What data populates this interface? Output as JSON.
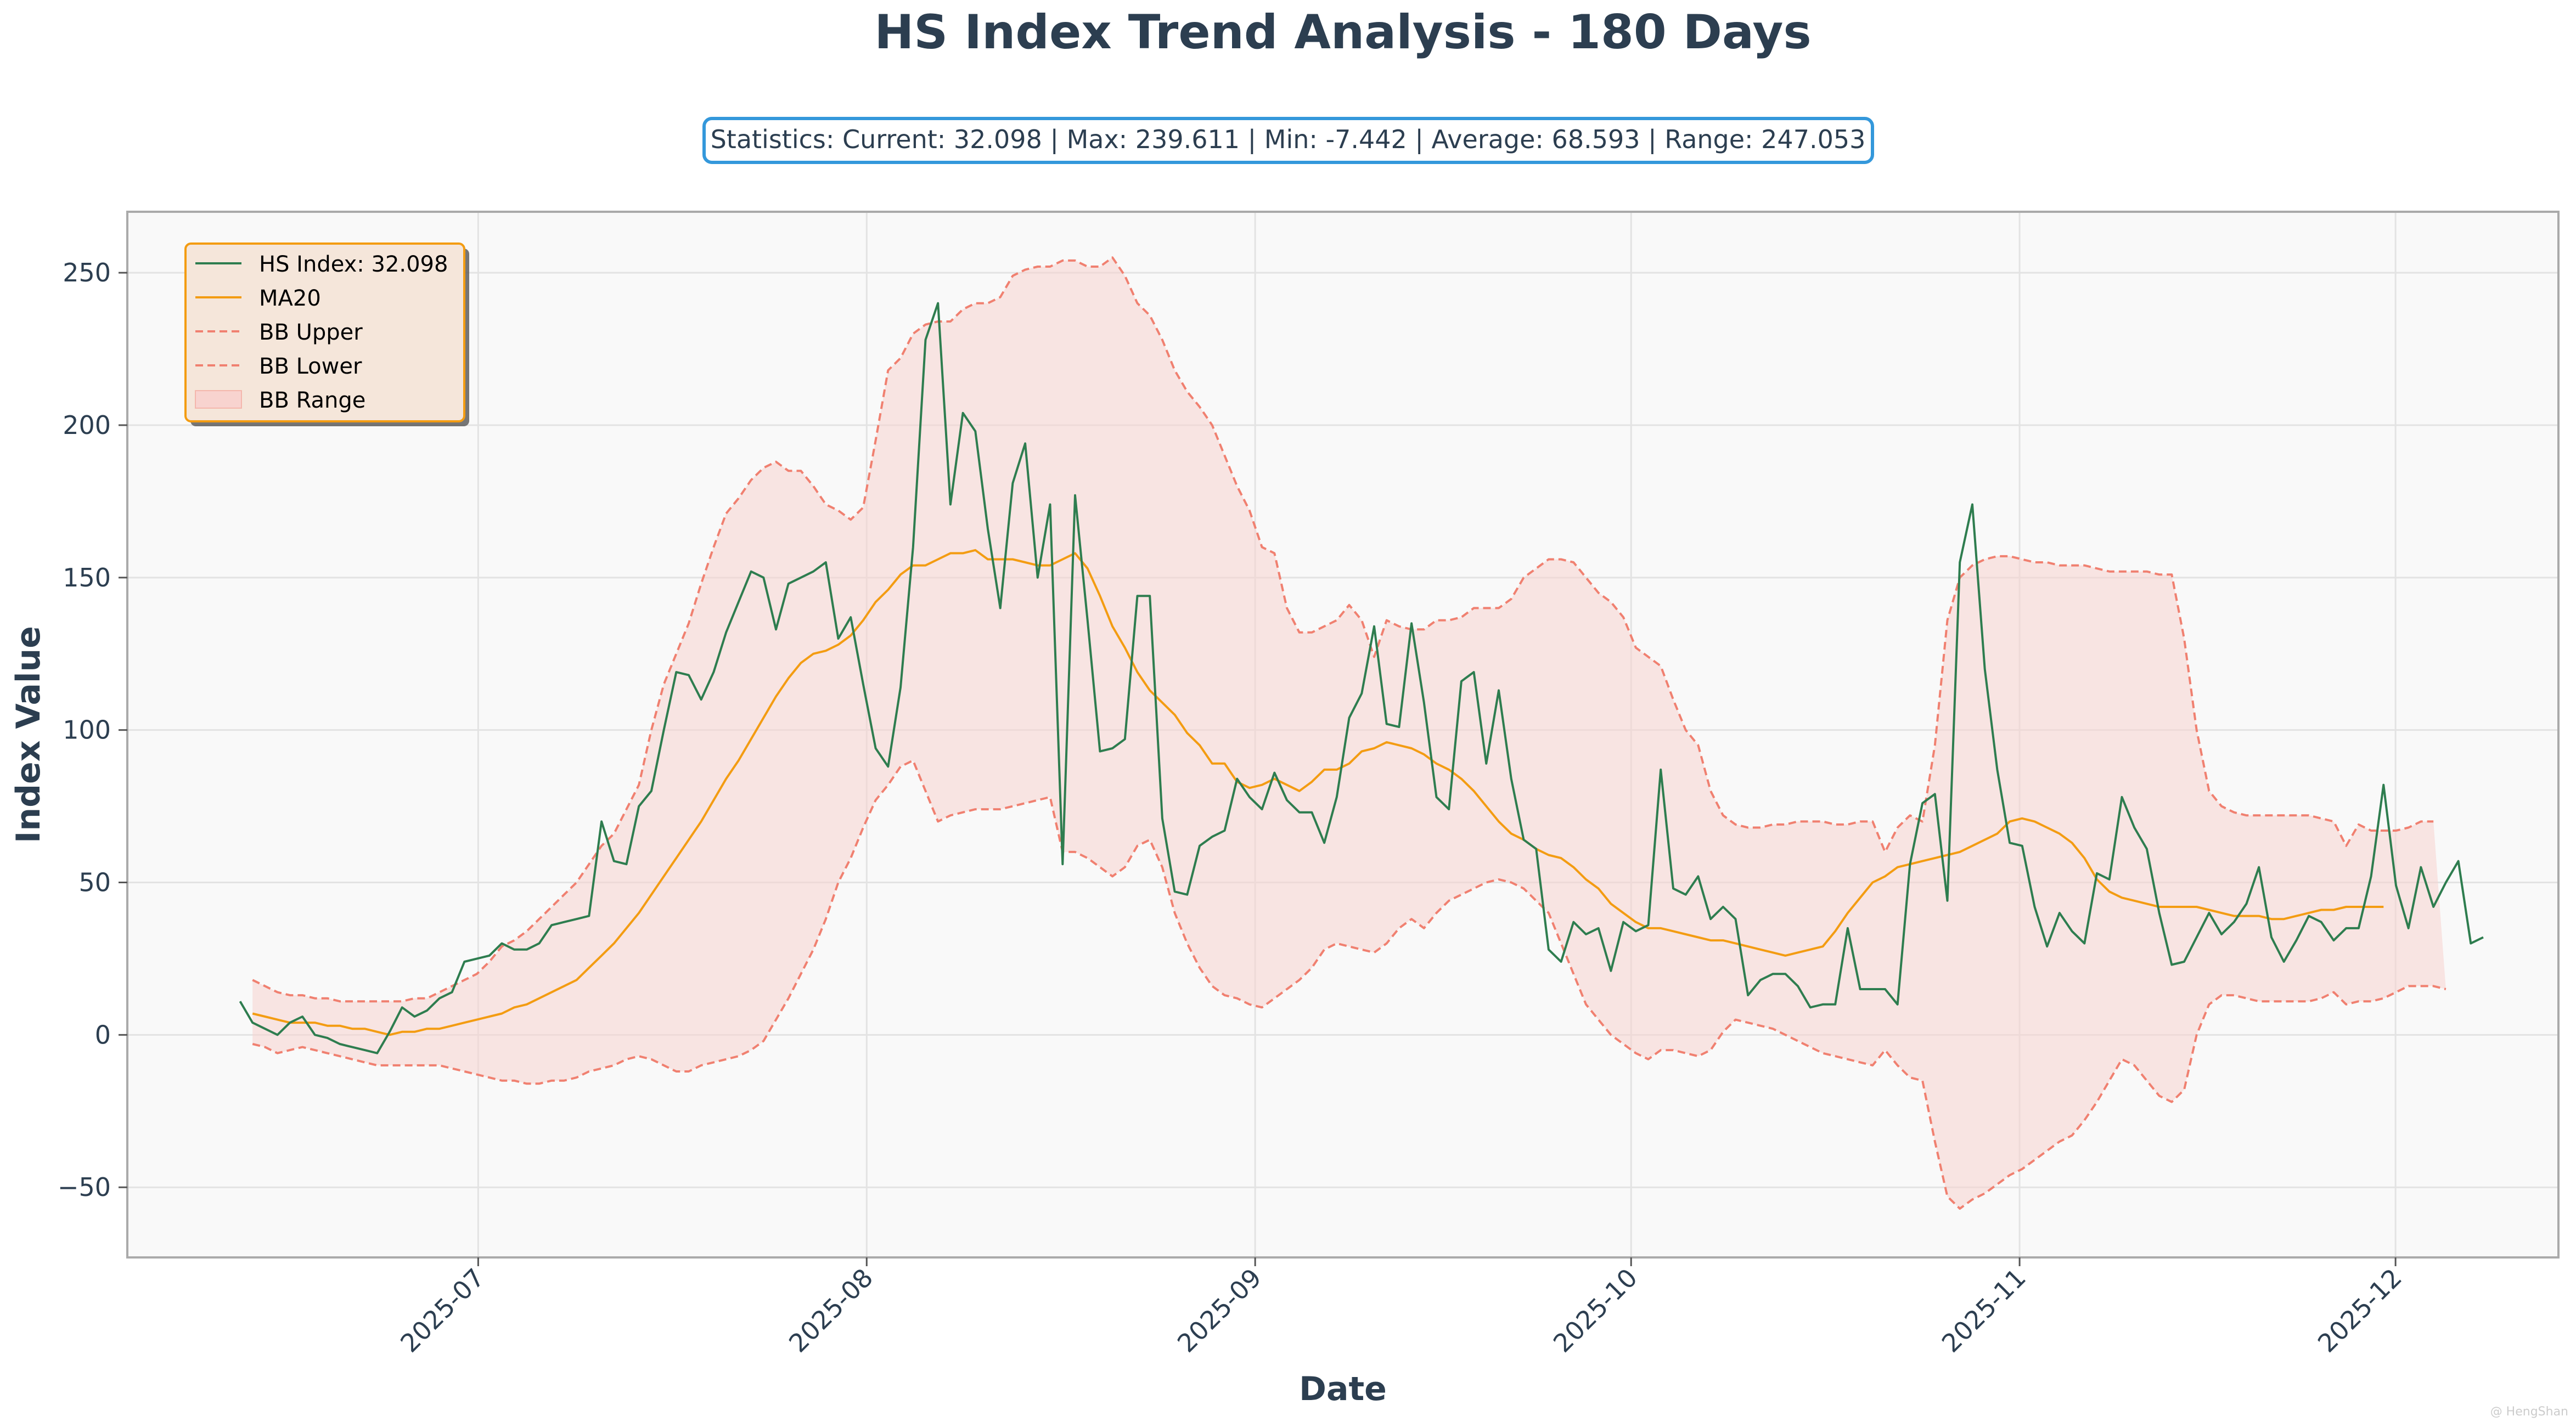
{
  "chart_data": {
    "type": "line",
    "title": "HS Index Trend Analysis - 180 Days",
    "stats_text": "Statistics: Current: 32.098 | Max: 239.611 | Min: -7.442 | Average: 68.593 | Range: 247.053",
    "xlabel": "Date",
    "ylabel": "Index Value",
    "x_start": "2025-06-12",
    "x_end": "2025-12-08",
    "xlim": [
      "2025-06-03",
      "2025-12-14"
    ],
    "ylim": [
      -73,
      270
    ],
    "y_ticks": [
      -50,
      0,
      50,
      100,
      150,
      200,
      250
    ],
    "y_tick_labels": [
      "−50",
      "0",
      "50",
      "100",
      "150",
      "200",
      "250"
    ],
    "x_ticks": [
      "2025-07-01",
      "2025-08-01",
      "2025-09-01",
      "2025-10-01",
      "2025-11-01",
      "2025-12-01"
    ],
    "x_tick_labels": [
      "2025-07",
      "2025-08",
      "2025-09",
      "2025-10",
      "2025-11",
      "2025-12"
    ],
    "grid": true,
    "legend_position": "top-left",
    "colors": {
      "index": "#2e7d4f",
      "ma": "#f39c12",
      "band": "#f08070",
      "band_fill": "#f8d3cf",
      "plot_bg": "#f9f9f9",
      "accent": "#3498db"
    },
    "series": [
      {
        "name": "HS Index: 32.098",
        "values": [
          11,
          4,
          2,
          0,
          4,
          6,
          0,
          -1,
          -3,
          -4,
          -5,
          -6,
          1,
          9,
          6,
          8,
          12,
          14,
          24,
          25,
          26,
          30,
          28,
          28,
          30,
          36,
          37,
          38,
          39,
          70,
          57,
          56,
          75,
          80,
          100,
          119,
          118,
          110,
          119,
          132,
          142,
          152,
          150,
          133,
          148,
          150,
          152,
          155,
          130,
          137,
          115,
          94,
          88,
          114,
          160,
          228,
          240,
          174,
          204,
          198,
          166,
          140,
          181,
          194,
          150,
          174,
          56,
          177,
          136,
          93,
          94,
          97,
          144,
          144,
          71,
          47,
          46,
          62,
          65,
          67,
          84,
          78,
          74,
          86,
          77,
          73,
          73,
          63,
          78,
          104,
          112,
          134,
          102,
          101,
          135,
          109,
          78,
          74,
          116,
          119,
          89,
          113,
          84,
          64,
          61,
          28,
          24,
          37,
          33,
          35,
          21,
          37,
          34,
          36,
          87,
          48,
          46,
          52,
          38,
          42,
          38,
          13,
          18,
          20,
          20,
          16,
          9,
          10,
          10,
          35,
          15,
          15,
          15,
          10,
          56,
          76,
          79,
          44,
          155,
          174,
          120,
          87,
          63,
          62,
          42,
          29,
          40,
          34,
          30,
          53,
          51,
          78,
          68,
          61,
          40,
          23,
          24,
          32,
          40,
          33,
          37,
          43,
          55,
          32,
          24,
          31,
          39,
          37,
          31,
          35,
          35,
          52,
          82,
          49,
          35,
          55,
          42,
          50,
          57,
          30,
          32
        ]
      },
      {
        "name": "MA20",
        "start_index": 1,
        "values": [
          7,
          6,
          5,
          4,
          4,
          4,
          3,
          3,
          2,
          2,
          1,
          0,
          1,
          1,
          2,
          2,
          3,
          4,
          5,
          6,
          7,
          9,
          10,
          12,
          14,
          16,
          18,
          22,
          26,
          30,
          35,
          40,
          46,
          52,
          58,
          64,
          70,
          77,
          84,
          90,
          97,
          104,
          111,
          117,
          122,
          125,
          126,
          128,
          131,
          136,
          142,
          146,
          151,
          154,
          154,
          156,
          158,
          158,
          159,
          156,
          156,
          156,
          155,
          154,
          154,
          156,
          158,
          153,
          144,
          134,
          127,
          119,
          113,
          109,
          105,
          99,
          95,
          89,
          89,
          83,
          81,
          82,
          84,
          82,
          80,
          83,
          87,
          87,
          89,
          93,
          94,
          96,
          95,
          94,
          92,
          89,
          87,
          84,
          80,
          75,
          70,
          66,
          64,
          61,
          59,
          58,
          55,
          51,
          48,
          43,
          40,
          37,
          35,
          35,
          34,
          33,
          32,
          31,
          31,
          30,
          29,
          28,
          27,
          26,
          27,
          28,
          29,
          34,
          40,
          45,
          50,
          52,
          55,
          56,
          57,
          58,
          59,
          60,
          62,
          64,
          66,
          70,
          71,
          70,
          68,
          66,
          63,
          58,
          51,
          47,
          45,
          44,
          43,
          42,
          42,
          42,
          42,
          41,
          40,
          39,
          39,
          39,
          38,
          38,
          39,
          40,
          41,
          41,
          42,
          42,
          42,
          42
        ]
      },
      {
        "name": "BB Upper",
        "start_index": 1,
        "values": [
          18,
          16,
          14,
          13,
          13,
          12,
          12,
          11,
          11,
          11,
          11,
          11,
          11,
          12,
          12,
          14,
          16,
          18,
          20,
          24,
          29,
          31,
          34,
          38,
          42,
          46,
          50,
          56,
          62,
          66,
          74,
          82,
          100,
          115,
          125,
          135,
          148,
          160,
          171,
          176,
          182,
          186,
          188,
          185,
          185,
          180,
          174,
          172,
          169,
          173,
          195,
          218,
          222,
          230,
          233,
          234,
          234,
          238,
          240,
          240,
          242,
          249,
          251,
          252,
          252,
          254,
          254,
          252,
          252,
          255,
          249,
          240,
          236,
          228,
          218,
          211,
          206,
          200,
          190,
          180,
          172,
          160,
          158,
          140,
          132,
          132,
          134,
          136,
          141,
          136,
          124,
          136,
          134,
          133,
          133,
          136,
          136,
          137,
          140,
          140,
          140,
          143,
          150,
          153,
          156,
          156,
          155,
          150,
          145,
          142,
          137,
          127,
          124,
          121,
          110,
          100,
          95,
          80,
          72,
          69,
          68,
          68,
          69,
          69,
          70,
          70,
          70,
          69,
          69,
          70,
          70,
          60,
          68,
          72,
          70,
          95,
          136,
          150,
          154,
          156,
          157,
          157,
          156,
          155,
          155,
          154,
          154,
          154,
          153,
          152,
          152,
          152,
          152,
          151,
          151,
          130,
          100,
          80,
          75,
          73,
          72,
          72,
          72,
          72,
          72,
          72,
          71,
          70,
          62,
          69,
          67,
          67,
          67,
          68,
          70,
          70
        ]
      },
      {
        "name": "BB Lower",
        "start_index": 1,
        "values": [
          -3,
          -4,
          -6,
          -5,
          -4,
          -5,
          -6,
          -7,
          -8,
          -9,
          -10,
          -10,
          -10,
          -10,
          -10,
          -10,
          -11,
          -12,
          -13,
          -14,
          -15,
          -15,
          -16,
          -16,
          -15,
          -15,
          -14,
          -12,
          -11,
          -10,
          -8,
          -7,
          -8,
          -10,
          -12,
          -12,
          -10,
          -9,
          -8,
          -7,
          -5,
          -2,
          5,
          12,
          20,
          28,
          38,
          50,
          58,
          68,
          77,
          82,
          88,
          90,
          80,
          70,
          72,
          73,
          74,
          74,
          74,
          75,
          76,
          77,
          78,
          60,
          60,
          58,
          55,
          52,
          55,
          62,
          64,
          55,
          40,
          30,
          22,
          16,
          13,
          12,
          10,
          9,
          12,
          15,
          18,
          22,
          28,
          30,
          29,
          28,
          27,
          30,
          35,
          38,
          35,
          40,
          44,
          46,
          48,
          50,
          51,
          50,
          48,
          44,
          40,
          30,
          20,
          10,
          5,
          0,
          -3,
          -6,
          -8,
          -5,
          -5,
          -6,
          -7,
          -5,
          1,
          5,
          4,
          3,
          2,
          0,
          -2,
          -4,
          -6,
          -7,
          -8,
          -9,
          -10,
          -5,
          -10,
          -14,
          -15,
          -35,
          -53,
          -57,
          -54,
          -52,
          -49,
          -46,
          -44,
          -41,
          -38,
          -35,
          -33,
          -28,
          -22,
          -15,
          -8,
          -10,
          -15,
          -20,
          -22,
          -18,
          0,
          10,
          13,
          13,
          12,
          11,
          11,
          11,
          11,
          11,
          12,
          14,
          10,
          11,
          11,
          12,
          14,
          16,
          16,
          16,
          15
        ]
      }
    ],
    "legend": [
      {
        "label": "HS Index: 32.098",
        "style": "line"
      },
      {
        "label": "MA20",
        "style": "line"
      },
      {
        "label": "BB Upper",
        "style": "dashed"
      },
      {
        "label": "BB Lower",
        "style": "dashed"
      },
      {
        "label": "BB Range",
        "style": "patch"
      }
    ],
    "watermark": "@ HengShan"
  }
}
